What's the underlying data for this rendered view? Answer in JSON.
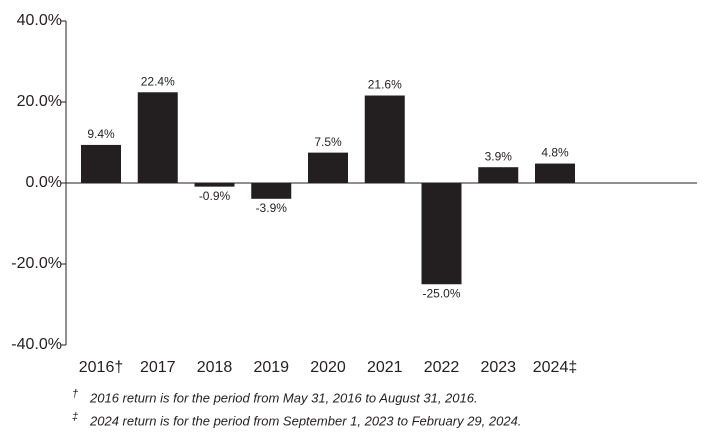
{
  "chart_data": {
    "type": "bar",
    "categories": [
      "2016†",
      "2017",
      "2018",
      "2019",
      "2020",
      "2021",
      "2022",
      "2023",
      "2024‡"
    ],
    "values": [
      9.4,
      22.4,
      -0.9,
      -3.9,
      7.5,
      21.6,
      -25.0,
      3.9,
      4.8
    ],
    "value_labels": [
      "9.4%",
      "22.4%",
      "-0.9%",
      "-3.9%",
      "7.5%",
      "21.6%",
      "-25.0%",
      "3.9%",
      "4.8%"
    ],
    "color": "#231f20",
    "ylim": [
      -40,
      40
    ],
    "yticks": [
      {
        "value": -40,
        "label": "-40.0%"
      },
      {
        "value": -20,
        "label": "-20.0%"
      },
      {
        "value": 0,
        "label": "0.0%"
      },
      {
        "value": 20,
        "label": "20.0%"
      },
      {
        "value": 40,
        "label": "40.0%"
      }
    ],
    "footnotes": [
      {
        "symbol": "†",
        "text": "2016 return is for the period from May 31, 2016 to August 31, 2016."
      },
      {
        "symbol": "‡",
        "text": "2024 return is for the period from September 1, 2023 to February 29, 2024."
      }
    ]
  }
}
